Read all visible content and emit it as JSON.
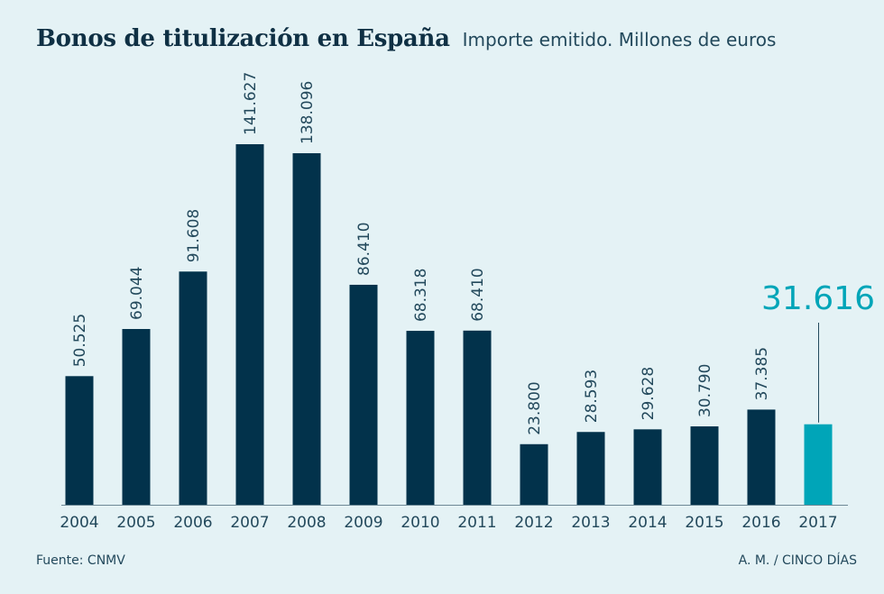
{
  "chart_data": {
    "type": "bar",
    "title": "Bonos de titulización en España",
    "subtitle": "Importe emitido. Millones de euros",
    "categories": [
      "2004",
      "2005",
      "2006",
      "2007",
      "2008",
      "2009",
      "2010",
      "2011",
      "2012",
      "2013",
      "2014",
      "2015",
      "2016",
      "2017"
    ],
    "values": [
      50525,
      69044,
      91608,
      141627,
      138096,
      86410,
      68318,
      68410,
      23800,
      28593,
      29628,
      30790,
      37385,
      31616
    ],
    "value_labels": [
      "50.525",
      "69.044",
      "91.608",
      "141.627",
      "138.096",
      "86.410",
      "68.318",
      "68.410",
      "23.800",
      "28.593",
      "29.628",
      "30.790",
      "37.385",
      "31.616"
    ],
    "highlight_index": 13,
    "ylim": [
      0,
      141627
    ],
    "xlabel": "",
    "ylabel": "",
    "grid": false,
    "colors": {
      "bar": "#02324b",
      "highlight": "#00a5b8",
      "text": "#23495c"
    }
  },
  "footer": {
    "source": "Fuente: CNMV",
    "credit": "A. M. / CINCO DÍAS"
  }
}
